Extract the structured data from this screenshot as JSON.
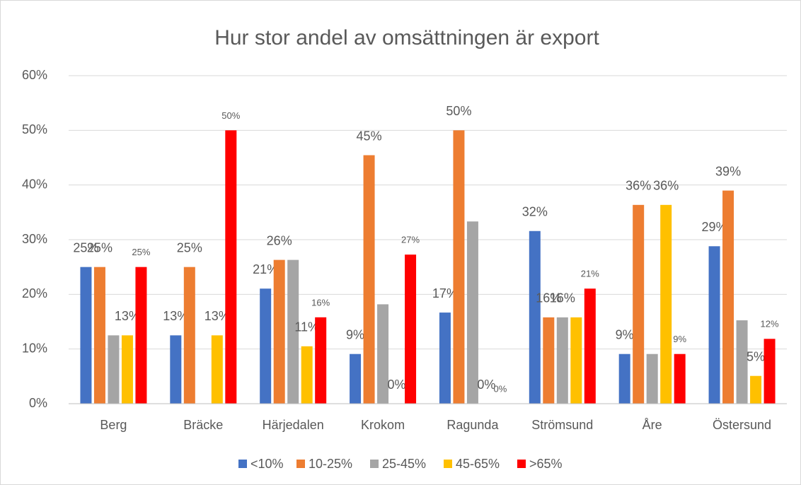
{
  "chart_data": {
    "type": "bar",
    "title": "Hur stor andel av omsättningen är export",
    "categories": [
      "Berg",
      "Bräcke",
      "Härjedalen",
      "Krokom",
      "Ragunda",
      "Strömsund",
      "Åre",
      "Östersund"
    ],
    "series": [
      {
        "name": "<10%",
        "color": "#4472c4",
        "values": [
          25,
          12.5,
          21.05,
          9.09,
          16.67,
          31.58,
          9.09,
          28.8
        ],
        "value_labels": [
          "25%",
          "13%",
          "21%",
          "9%",
          "17%",
          "32%",
          "9%",
          "29%"
        ]
      },
      {
        "name": "10-25%",
        "color": "#ed7d31",
        "values": [
          25,
          25,
          26.3,
          45.45,
          50,
          15.79,
          36.36,
          38.98
        ],
        "value_labels": [
          "25%",
          "25%",
          "26%",
          "45%",
          "50%",
          "16%",
          "36%",
          "39%"
        ]
      },
      {
        "name": "25-45%",
        "color": "#a5a5a5",
        "values": [
          12.5,
          0,
          26.3,
          18.18,
          33.33,
          15.79,
          9.09,
          15.25
        ],
        "value_labels": [
          null,
          null,
          null,
          null,
          null,
          "16%",
          null,
          null
        ]
      },
      {
        "name": "45-65%",
        "color": "#ffc000",
        "values": [
          12.5,
          12.5,
          10.5,
          0,
          0,
          15.79,
          36.36,
          5.08
        ],
        "value_labels": [
          "13%",
          "13%",
          "11%",
          "0%",
          "0%",
          null,
          "36%",
          "5%"
        ]
      },
      {
        "name": ">65%",
        "color": "#ff0000",
        "values": [
          25,
          50,
          15.8,
          27.27,
          0,
          21.05,
          9.09,
          11.86
        ],
        "value_labels": [
          "25%",
          "50%",
          "16%",
          "27%",
          "0%",
          "21%",
          "9%",
          "12%"
        ]
      }
    ],
    "ylim": [
      0,
      60
    ],
    "yticks": [
      {
        "value": 0,
        "label": "0%"
      },
      {
        "value": 10,
        "label": "10%"
      },
      {
        "value": 20,
        "label": "20%"
      },
      {
        "value": 30,
        "label": "30%"
      },
      {
        "value": 40,
        "label": "40%"
      },
      {
        "value": 50,
        "label": "50%"
      },
      {
        "value": 60,
        "label": "60%"
      }
    ],
    "grid": true,
    "legend": "bottom"
  }
}
